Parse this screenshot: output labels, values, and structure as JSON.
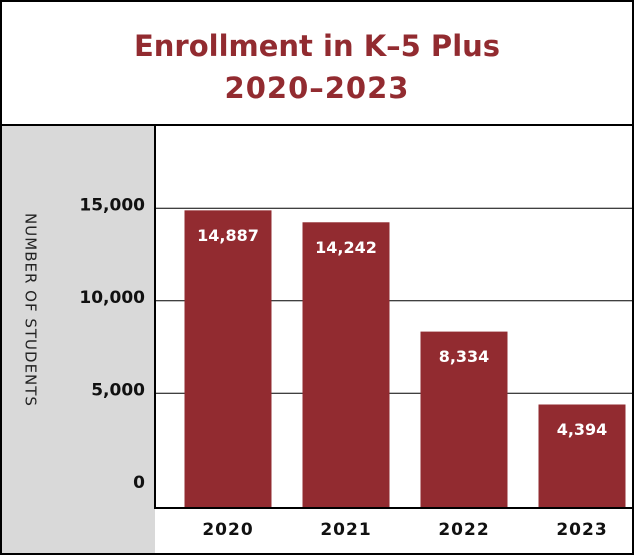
{
  "chart_data": {
    "type": "bar",
    "title": [
      "Enrollment in K–5 Plus",
      "2020–2023"
    ],
    "y_label": "NUMBER OF STUDENTS",
    "categories": [
      "2020",
      "2021",
      "2022",
      "2023"
    ],
    "values": [
      14887,
      14242,
      8334,
      4394
    ],
    "value_labels": [
      "14,887",
      "14,242",
      "8,334",
      "4,394"
    ],
    "color": "#922b30",
    "ylim": [
      -1200,
      19500
    ],
    "yticks": [
      0,
      {
        "value": 5000,
        "label": "5,000"
      },
      {
        "value": 10000,
        "label": "10,000"
      },
      {
        "value": 15000,
        "label": "15,000"
      }
    ],
    "grid": true
  }
}
